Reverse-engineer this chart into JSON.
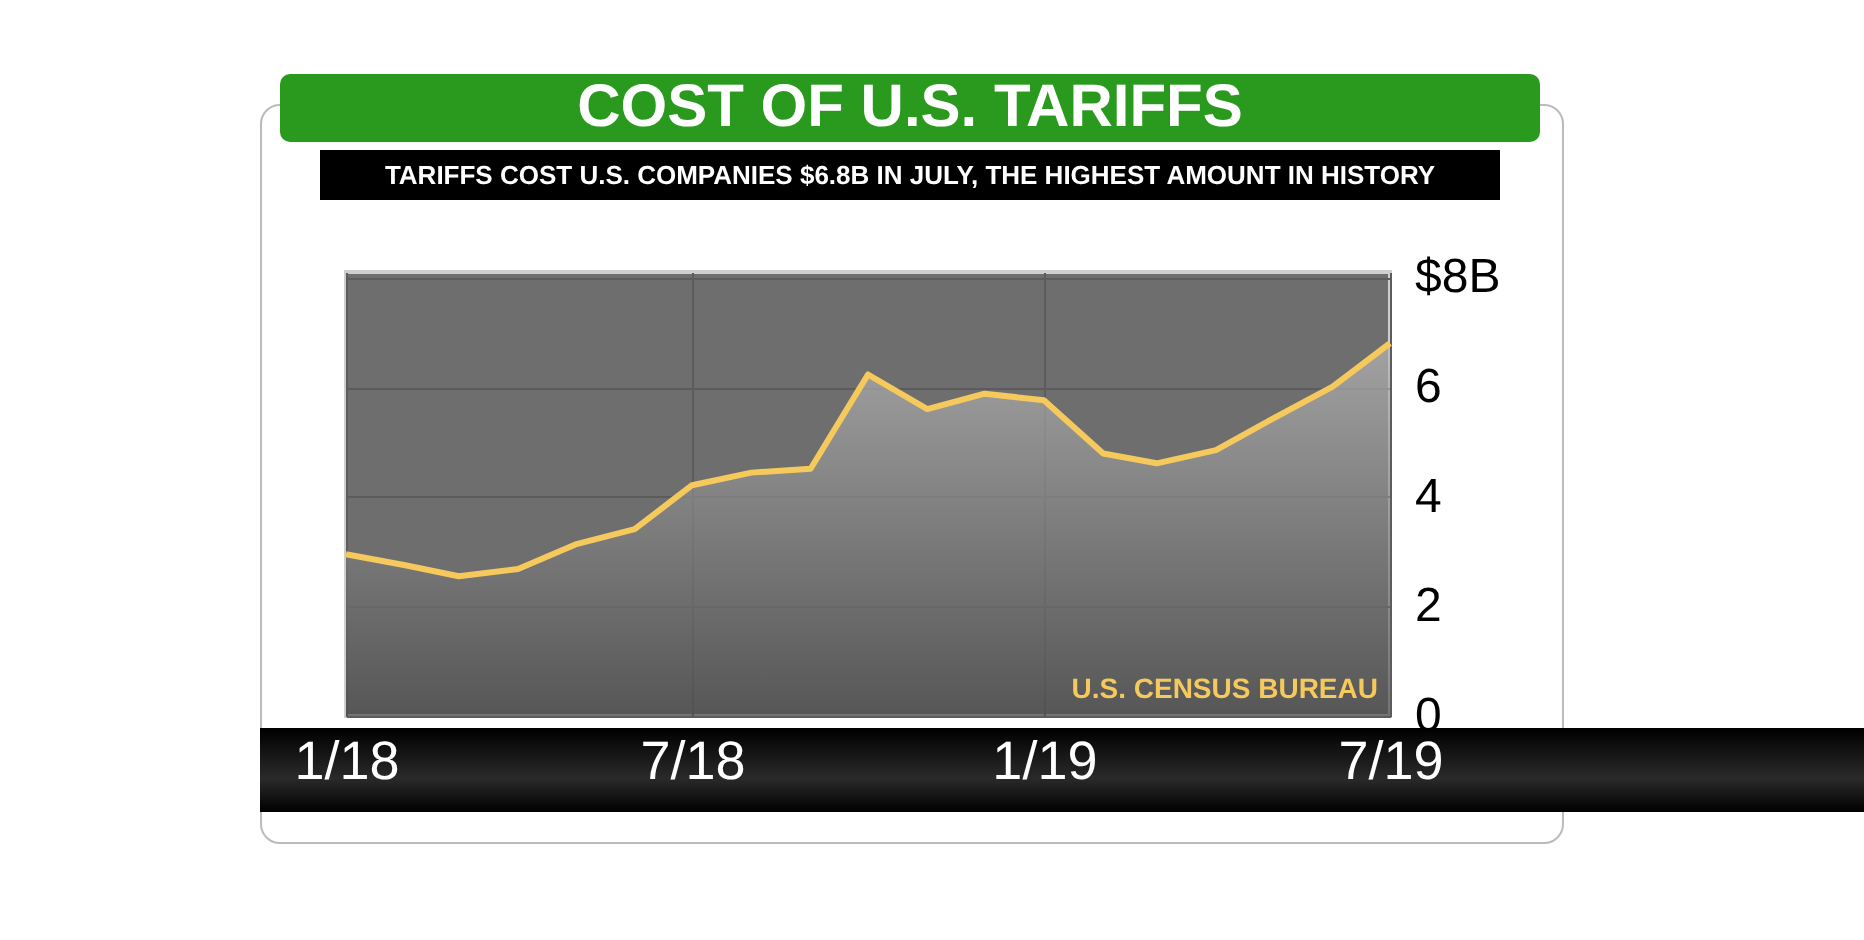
{
  "chart_data": {
    "type": "area",
    "title": "COST OF U.S. TARIFFS",
    "subtitle": "TARIFFS COST U.S. COMPANIES $6.8B IN JULY, THE HIGHEST AMOUNT IN HISTORY",
    "x": [
      "2018-01",
      "2018-02",
      "2018-03",
      "2018-04",
      "2018-05",
      "2018-06",
      "2018-07",
      "2018-08",
      "2018-09",
      "2018-10",
      "2018-11",
      "2018-12",
      "2019-01",
      "2019-02",
      "2019-03",
      "2019-04",
      "2019-05",
      "2019-06",
      "2019-07"
    ],
    "series": [
      {
        "color": "#f5c95c",
        "values": [
          2.95,
          2.75,
          2.55,
          2.68,
          3.13,
          3.41,
          4.21,
          4.44,
          4.51,
          6.23,
          5.6,
          5.88,
          5.76,
          4.79,
          4.61,
          4.85,
          5.43,
          6.01,
          6.8
        ]
      }
    ],
    "xlim": [
      "2018-01",
      "2019-07"
    ],
    "xticks": [
      {
        "value": "2018-01",
        "label": "1/18"
      },
      {
        "value": "2018-07",
        "label": "7/18"
      },
      {
        "value": "2019-01",
        "label": "1/19"
      },
      {
        "value": "2019-07",
        "label": "7/19"
      }
    ],
    "ylim": [
      0,
      8.1
    ],
    "yticks": [
      0,
      2,
      4,
      6,
      {
        "value": 8,
        "label": "$8B"
      }
    ],
    "grid": true,
    "annotations": [
      "U.S. CENSUS BUREAU"
    ]
  }
}
